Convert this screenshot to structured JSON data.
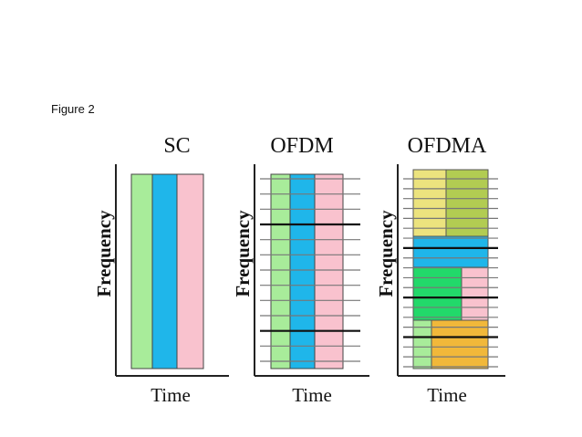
{
  "caption": "Figure 2",
  "panels": [
    {
      "title": "SC",
      "xlabel": "Time",
      "ylabel": "Frequency"
    },
    {
      "title": "OFDM",
      "xlabel": "Time",
      "ylabel": "Frequency"
    },
    {
      "title": "OFDMA",
      "xlabel": "Time",
      "ylabel": "Frequency"
    }
  ],
  "colors": {
    "green": "#a8ec9a",
    "cyan": "#1fb6ea",
    "pink": "#f9c2ce",
    "light_green": "#22d96a",
    "yellow": "#ece37e",
    "olive": "#b2cc52",
    "orange": "#f1b83a",
    "line": "#777777",
    "axis": "#222222"
  }
}
